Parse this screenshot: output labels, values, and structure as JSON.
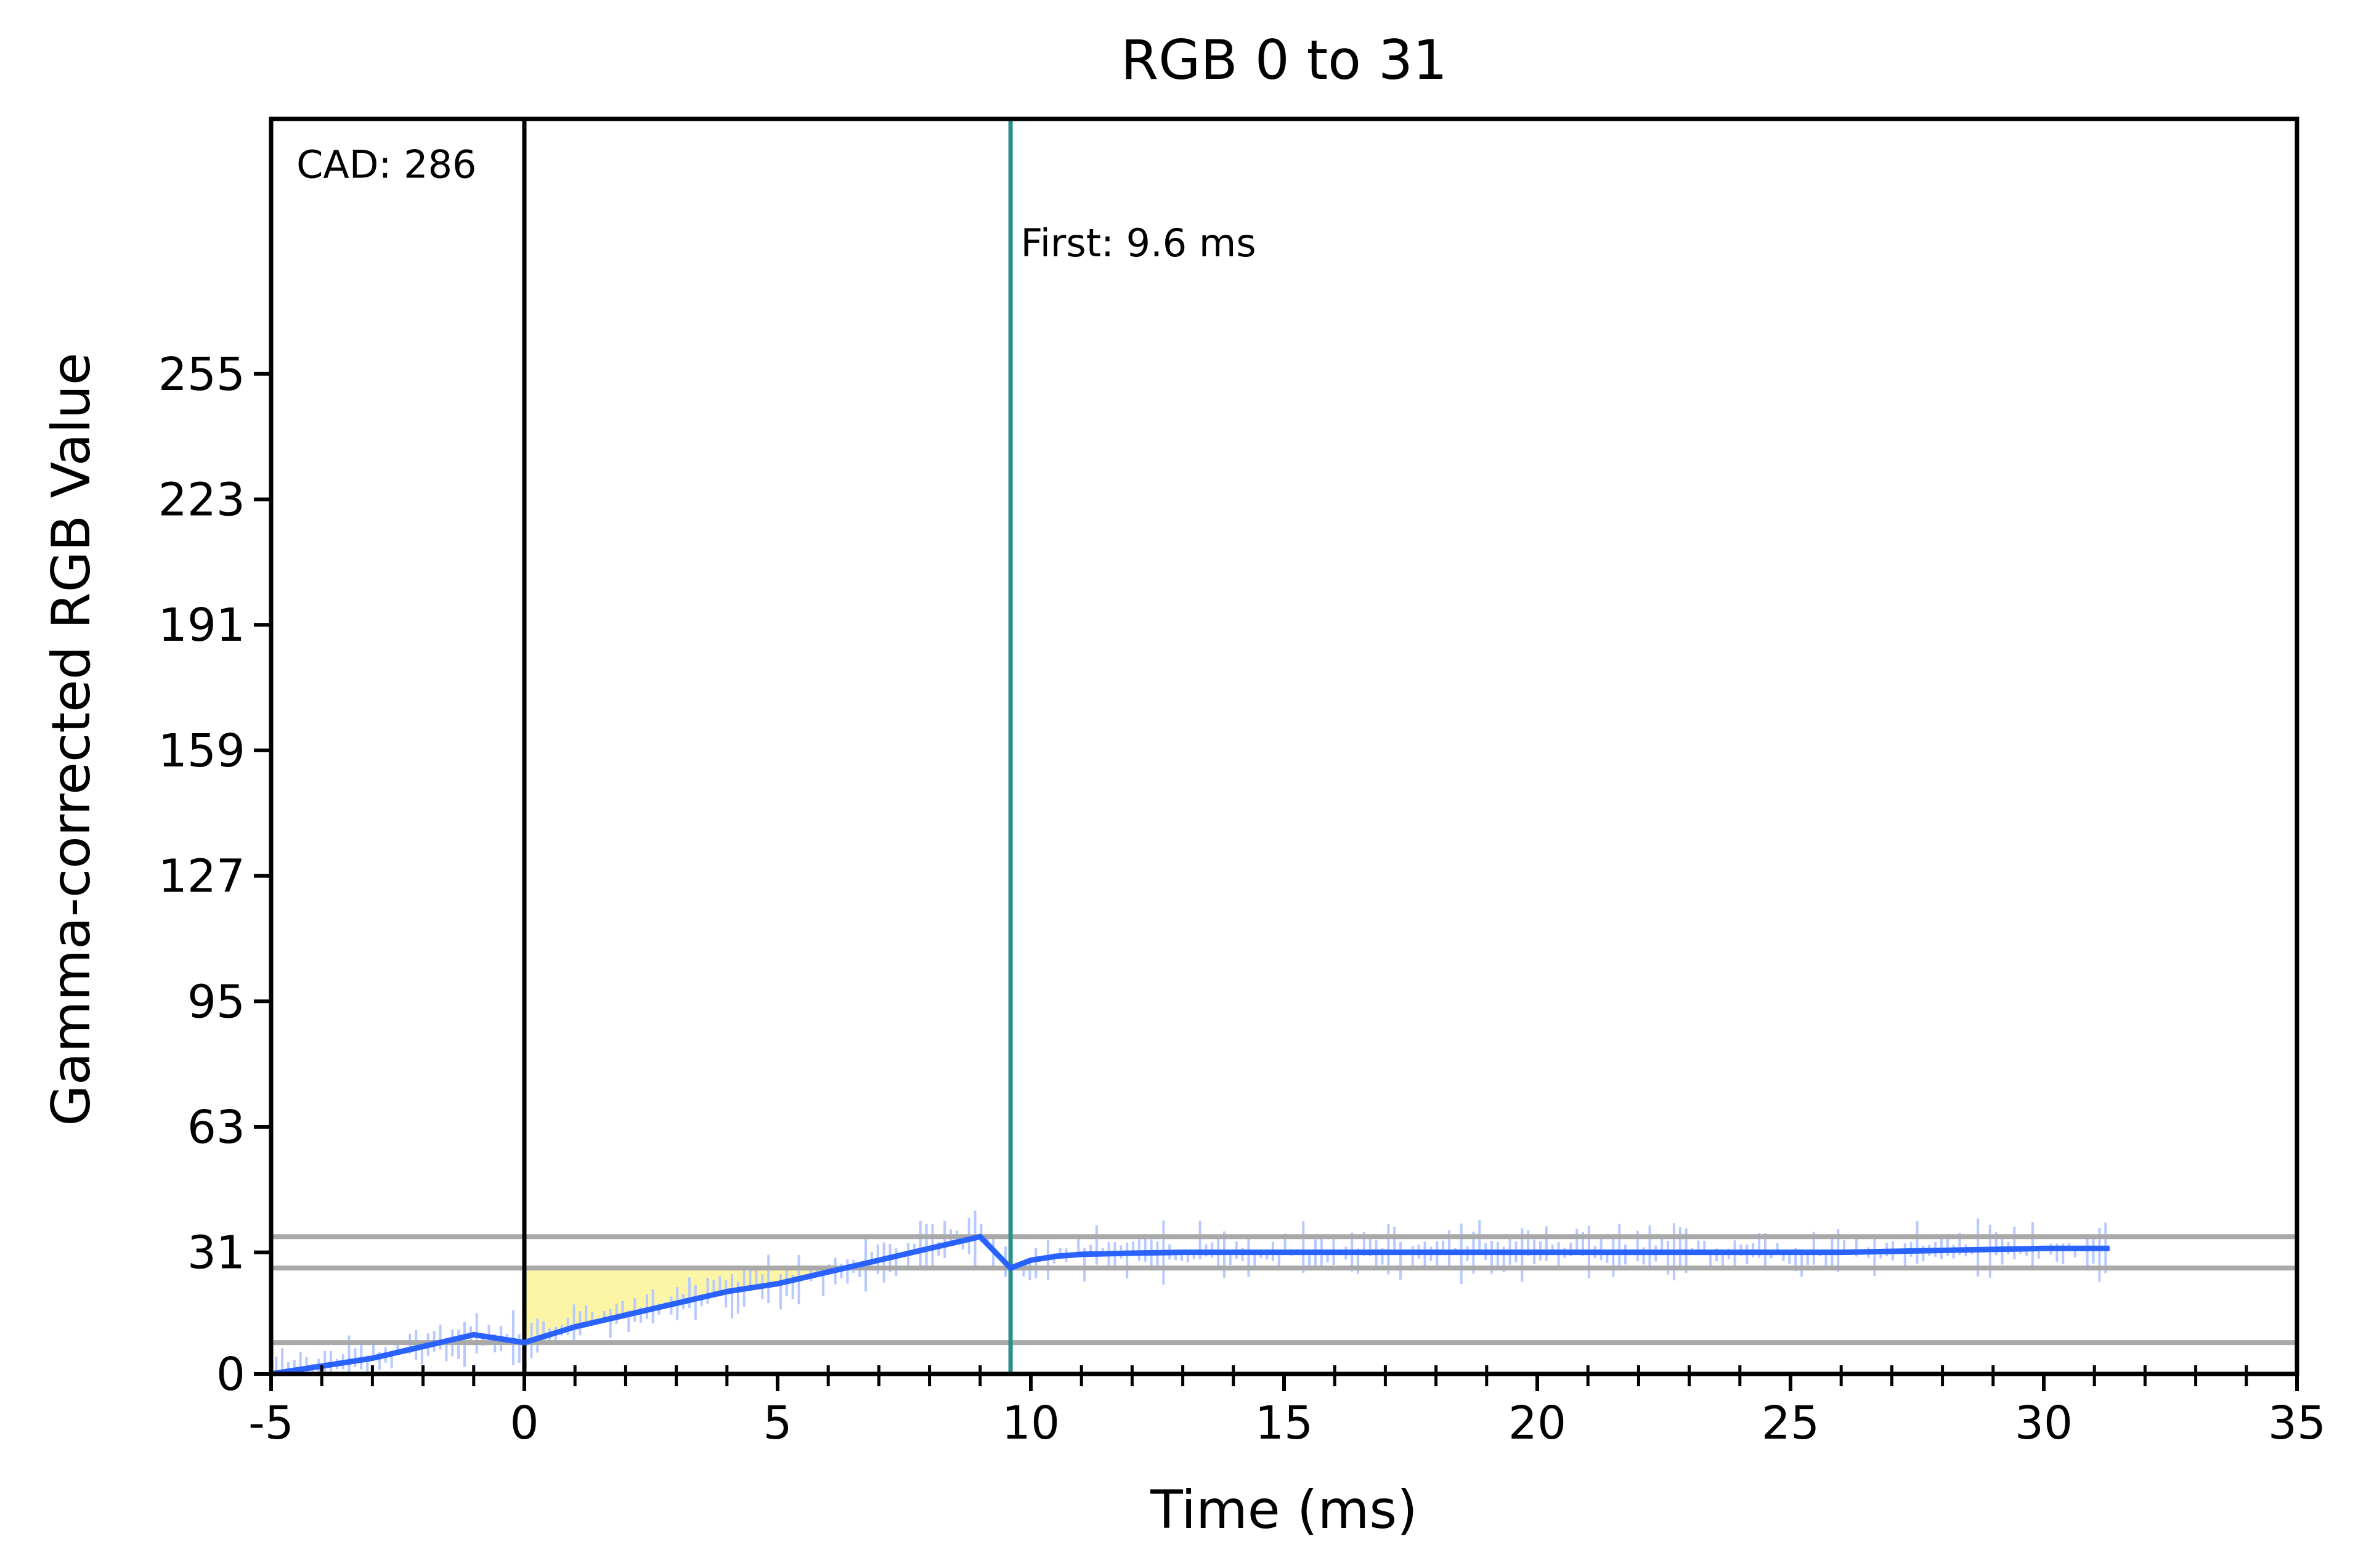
{
  "chart_data": {
    "type": "line",
    "title": "RGB 0 to 31",
    "xlabel": "Time (ms)",
    "ylabel": "Gamma-corrected RGB Value",
    "xlim": [
      -5,
      35
    ],
    "ylim": [
      0,
      320
    ],
    "xticks": [
      -5,
      0,
      5,
      10,
      15,
      20,
      25,
      30,
      35
    ],
    "xtick_labels": [
      "-5",
      "0",
      "5",
      "10",
      "15",
      "20",
      "25",
      "30",
      "35"
    ],
    "yticks": [
      0,
      31,
      63,
      95,
      127,
      159,
      191,
      223,
      255
    ],
    "ytick_labels": [
      "0",
      "31",
      "63",
      "95",
      "127",
      "159",
      "191",
      "223",
      "255"
    ],
    "grid": false,
    "series": [
      {
        "kind": "smoothed",
        "color": "#2962ff",
        "x": [
          -5,
          -4,
          -3,
          -2,
          -1,
          0,
          1,
          2,
          3,
          4,
          5,
          6,
          7,
          8,
          9,
          9.6,
          10,
          10.5,
          11,
          12,
          13,
          15,
          18,
          20,
          22,
          24,
          26,
          28,
          30,
          31.3
        ],
        "y": [
          0,
          2,
          4,
          7,
          10,
          8,
          12,
          15,
          18,
          21,
          23,
          26,
          29,
          32,
          35,
          27,
          29,
          30,
          30.5,
          30.8,
          31,
          31,
          31,
          31,
          31,
          31,
          31,
          31.5,
          32,
          32
        ]
      },
      {
        "kind": "raw-samples",
        "color": "#b7c9ff",
        "noise_amplitude": 7
      }
    ],
    "reference_lines": [
      {
        "orientation": "horizontal",
        "y": 35,
        "color": "#a9a9a9"
      },
      {
        "orientation": "horizontal",
        "y": 27,
        "color": "#a9a9a9"
      },
      {
        "orientation": "horizontal",
        "y": 8,
        "color": "#a9a9a9"
      },
      {
        "orientation": "vertical",
        "x": 0,
        "color": "#000000"
      },
      {
        "orientation": "vertical",
        "x": 9.6,
        "color": "#2a9088"
      }
    ],
    "shaded_region": {
      "x_start": 0,
      "x_end": 9.6,
      "y_top": 27,
      "color": "#fdf5a6"
    },
    "annotations": [
      {
        "text": "CAD: 286",
        "x": -4.5,
        "y": 305
      },
      {
        "text": "First: 9.6 ms",
        "x": 9.8,
        "y": 285
      }
    ]
  }
}
